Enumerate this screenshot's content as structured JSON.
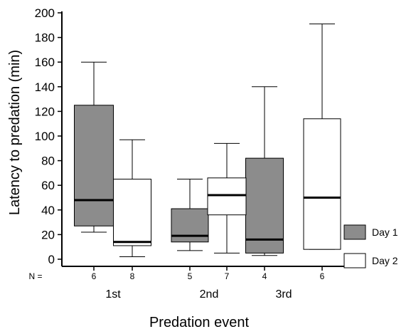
{
  "chart_data": {
    "type": "box",
    "xlabel": "Predation event",
    "ylabel": "Latency to predation (min)",
    "ylim": [
      0,
      200
    ],
    "y_ticks": [
      0,
      20,
      40,
      60,
      80,
      100,
      120,
      140,
      160,
      180,
      200
    ],
    "categories": [
      "1st",
      "2nd",
      "3rd"
    ],
    "n_label": "N =",
    "series": [
      {
        "name": "Day 1",
        "fill": "#8c8c8c",
        "boxes": [
          {
            "category": "1st",
            "n": "6",
            "min": 22,
            "q1": 27,
            "median": 48,
            "q3": 125,
            "max": 160
          },
          {
            "category": "2nd",
            "n": "5",
            "min": 7,
            "q1": 14,
            "median": 19,
            "q3": 41,
            "max": 65
          },
          {
            "category": "3rd",
            "n": "4",
            "min": 3,
            "q1": 5,
            "median": 16,
            "q3": 82,
            "max": 140
          }
        ]
      },
      {
        "name": "Day 2",
        "fill": "#ffffff",
        "boxes": [
          {
            "category": "1st",
            "n": "8",
            "min": 2,
            "q1": 11,
            "median": 14,
            "q3": 65,
            "max": 97
          },
          {
            "category": "2nd",
            "n": "7",
            "min": 5,
            "q1": 36,
            "median": 52,
            "q3": 66,
            "max": 94
          },
          {
            "category": "3rd",
            "n": "6",
            "min": 8,
            "q1": 8,
            "median": 50,
            "q3": 114,
            "max": 191
          }
        ]
      }
    ],
    "legend_position": "right"
  }
}
